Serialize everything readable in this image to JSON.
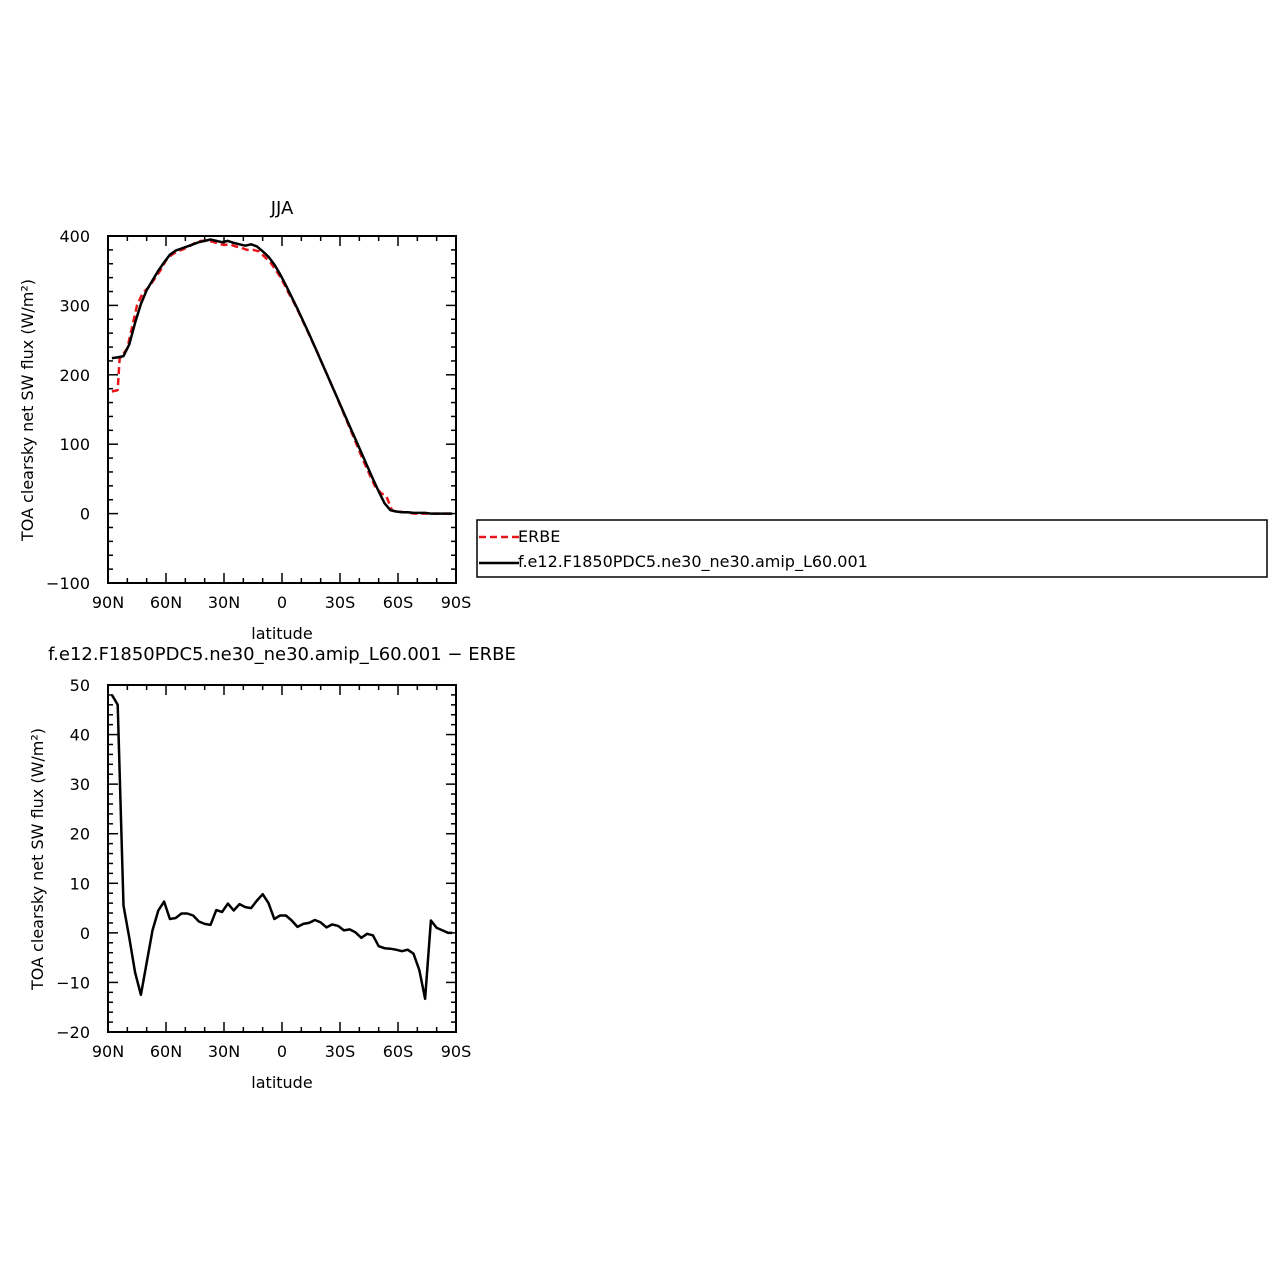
{
  "chart_data": [
    {
      "type": "line",
      "title": "JJA",
      "xlabel": "latitude",
      "ylabel": "TOA clearsky net SW flux (W/m²)",
      "xlim": [
        90,
        -90
      ],
      "ylim": [
        -100,
        400
      ],
      "x_ticks": [
        90,
        60,
        30,
        0,
        -30,
        -60,
        -90
      ],
      "x_tick_labels": [
        "90N",
        "60N",
        "30N",
        "0",
        "30S",
        "60S",
        "90S"
      ],
      "y_ticks": [
        -100,
        0,
        100,
        200,
        300,
        400
      ],
      "y_tick_labels": [
        "−100",
        "0",
        "100",
        "200",
        "300",
        "400"
      ],
      "legend_position": "right",
      "series": [
        {
          "name": "ERBE",
          "color": "#e8161b",
          "dash": "dashed",
          "x": [
            88,
            85,
            84,
            80,
            75,
            72,
            69,
            66,
            63,
            60,
            57,
            54,
            51,
            48,
            45,
            42,
            39,
            36,
            33,
            30,
            27,
            24,
            21,
            18,
            15,
            12,
            9,
            6,
            3,
            0,
            -3,
            -6,
            -9,
            -12,
            -15,
            -18,
            -21,
            -24,
            -27,
            -30,
            -33,
            -36,
            -39,
            -42,
            -45,
            -48,
            -51,
            -54,
            -57,
            -60,
            -63,
            -66,
            -69,
            -72,
            -75,
            -78,
            -81,
            -84,
            -87,
            -88
          ],
          "y": [
            176,
            178,
            223,
            238,
            300,
            318,
            326,
            338,
            350,
            365,
            373,
            378,
            381,
            385,
            390,
            393,
            393,
            392,
            389,
            387,
            388,
            385,
            383,
            380,
            380,
            378,
            370,
            362,
            350,
            337,
            320,
            305,
            288,
            270,
            252,
            234,
            215,
            196,
            177,
            157,
            137,
            117,
            97,
            77,
            58,
            40,
            30,
            25,
            4,
            3,
            2,
            1,
            0,
            0,
            0,
            0,
            0,
            0,
            0,
            0
          ]
        },
        {
          "name": "f.e12.F1850PDC5.ne30_ne30.amip_L60.001",
          "color": "#000000",
          "dash": "solid",
          "x": [
            88,
            85,
            82,
            79,
            76,
            73,
            70,
            67,
            64,
            61,
            58,
            55,
            52,
            49,
            46,
            43,
            40,
            37,
            34,
            31,
            28,
            25,
            22,
            19,
            16,
            13,
            10,
            7,
            4,
            1,
            -2,
            -5,
            -8,
            -11,
            -14,
            -17,
            -20,
            -23,
            -26,
            -29,
            -32,
            -35,
            -38,
            -41,
            -44,
            -47,
            -50,
            -53,
            -56,
            -59,
            -62,
            -65,
            -68,
            -71,
            -74,
            -77,
            -80,
            -83,
            -86,
            -88
          ],
          "y": [
            224,
            225,
            227,
            244,
            275,
            302,
            322,
            336,
            350,
            362,
            373,
            379,
            382,
            385,
            388,
            391,
            393,
            395,
            393,
            391,
            393,
            390,
            388,
            386,
            388,
            385,
            378,
            370,
            359,
            345,
            329,
            312,
            295,
            277,
            259,
            240,
            221,
            202,
            183,
            164,
            145,
            126,
            107,
            88,
            69,
            50,
            32,
            15,
            5,
            3,
            2,
            2,
            1,
            1,
            1,
            0,
            0,
            0,
            0,
            0
          ]
        }
      ]
    },
    {
      "type": "line",
      "title": "f.e12.F1850PDC5.ne30_ne30.amip_L60.001 − ERBE",
      "xlabel": "latitude",
      "ylabel": "TOA clearsky net SW flux (W/m²)",
      "xlim": [
        90,
        -90
      ],
      "ylim": [
        -20,
        50
      ],
      "x_ticks": [
        90,
        60,
        30,
        0,
        -30,
        -60,
        -90
      ],
      "x_tick_labels": [
        "90N",
        "60N",
        "30N",
        "0",
        "30S",
        "60S",
        "90S"
      ],
      "y_ticks": [
        -20,
        -10,
        0,
        10,
        20,
        30,
        40,
        50
      ],
      "y_tick_labels": [
        "−20",
        "−10",
        "0",
        "10",
        "20",
        "30",
        "40",
        "50"
      ],
      "series": [
        {
          "color": "#000000",
          "dash": "solid",
          "x": [
            88,
            85,
            82,
            79,
            76,
            73,
            70,
            67,
            64,
            61,
            58,
            55,
            52,
            49,
            46,
            43,
            40,
            37,
            34,
            31,
            28,
            25,
            22,
            19,
            16,
            13,
            10,
            7,
            4,
            1,
            -2,
            -5,
            -8,
            -11,
            -14,
            -17,
            -20,
            -23,
            -26,
            -29,
            -32,
            -35,
            -38,
            -41,
            -44,
            -47,
            -50,
            -53,
            -56,
            -59,
            -62,
            -65,
            -68,
            -71,
            -74,
            -77,
            -80,
            -83,
            -86,
            -88
          ],
          "y": [
            48,
            46,
            5.5,
            -1,
            -8,
            -12.5,
            -6,
            0.5,
            4.5,
            6.3,
            2.8,
            3,
            3.9,
            3.9,
            3.5,
            2.3,
            1.8,
            1.6,
            4.6,
            4.2,
            5.9,
            4.5,
            5.8,
            5.2,
            5,
            6.5,
            7.8,
            6,
            2.8,
            3.5,
            3.5,
            2.5,
            1.2,
            1.8,
            2,
            2.6,
            2.1,
            1.1,
            1.7,
            1.4,
            0.5,
            0.7,
            0.1,
            -1,
            -0.2,
            -0.5,
            -2.7,
            -3.1,
            -3.2,
            -3.4,
            -3.7,
            -3.4,
            -4.2,
            -7.5,
            -13.3,
            2.5,
            1,
            0.5,
            0,
            0
          ]
        }
      ]
    }
  ]
}
